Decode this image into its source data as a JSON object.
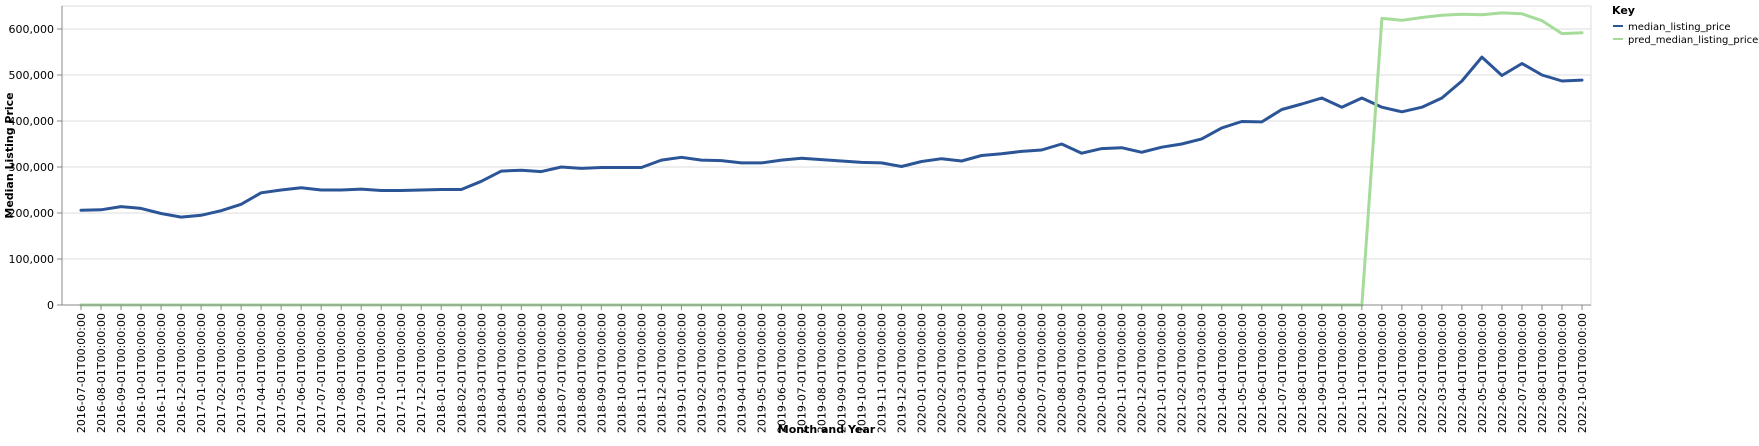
{
  "chart_data": {
    "type": "line",
    "xlabel": "Month and Year",
    "ylabel": "Median Listing Price",
    "ylim": [
      0,
      650000
    ],
    "y_ticks": [
      "0",
      "100,000",
      "200,000",
      "300,000",
      "400,000",
      "500,000",
      "600,000"
    ],
    "y_tick_values": [
      0,
      100000,
      200000,
      300000,
      400000,
      500000,
      600000
    ],
    "grid": true,
    "legend": {
      "title": "Key",
      "placement": "top-right"
    },
    "x": [
      "2016-07-01T00:00:00",
      "2016-08-01T00:00:00",
      "2016-09-01T00:00:00",
      "2016-10-01T00:00:00",
      "2016-11-01T00:00:00",
      "2016-12-01T00:00:00",
      "2017-01-01T00:00:00",
      "2017-02-01T00:00:00",
      "2017-03-01T00:00:00",
      "2017-04-01T00:00:00",
      "2017-05-01T00:00:00",
      "2017-06-01T00:00:00",
      "2017-07-01T00:00:00",
      "2017-08-01T00:00:00",
      "2017-09-01T00:00:00",
      "2017-10-01T00:00:00",
      "2017-11-01T00:00:00",
      "2017-12-01T00:00:00",
      "2018-01-01T00:00:00",
      "2018-02-01T00:00:00",
      "2018-03-01T00:00:00",
      "2018-04-01T00:00:00",
      "2018-05-01T00:00:00",
      "2018-06-01T00:00:00",
      "2018-07-01T00:00:00",
      "2018-08-01T00:00:00",
      "2018-09-01T00:00:00",
      "2018-10-01T00:00:00",
      "2018-11-01T00:00:00",
      "2018-12-01T00:00:00",
      "2019-01-01T00:00:00",
      "2019-02-01T00:00:00",
      "2019-03-01T00:00:00",
      "2019-04-01T00:00:00",
      "2019-05-01T00:00:00",
      "2019-06-01T00:00:00",
      "2019-07-01T00:00:00",
      "2019-08-01T00:00:00",
      "2019-09-01T00:00:00",
      "2019-10-01T00:00:00",
      "2019-11-01T00:00:00",
      "2019-12-01T00:00:00",
      "2020-01-01T00:00:00",
      "2020-02-01T00:00:00",
      "2020-03-01T00:00:00",
      "2020-04-01T00:00:00",
      "2020-05-01T00:00:00",
      "2020-06-01T00:00:00",
      "2020-07-01T00:00:00",
      "2020-08-01T00:00:00",
      "2020-09-01T00:00:00",
      "2020-10-01T00:00:00",
      "2020-11-01T00:00:00",
      "2020-12-01T00:00:00",
      "2021-01-01T00:00:00",
      "2021-02-01T00:00:00",
      "2021-03-01T00:00:00",
      "2021-04-01T00:00:00",
      "2021-05-01T00:00:00",
      "2021-06-01T00:00:00",
      "2021-07-01T00:00:00",
      "2021-08-01T00:00:00",
      "2021-09-01T00:00:00",
      "2021-10-01T00:00:00",
      "2021-11-01T00:00:00",
      "2021-12-01T00:00:00",
      "2022-01-01T00:00:00",
      "2022-02-01T00:00:00",
      "2022-03-01T00:00:00",
      "2022-04-01T00:00:00",
      "2022-05-01T00:00:00",
      "2022-06-01T00:00:00",
      "2022-07-01T00:00:00",
      "2022-08-01T00:00:00",
      "2022-09-01T00:00:00",
      "2022-10-01T00:00:00"
    ],
    "series": [
      {
        "name": "median_listing_price",
        "color": "#2b5597",
        "values": [
          206000,
          207000,
          214000,
          210000,
          199000,
          191000,
          195000,
          205000,
          219000,
          244000,
          250000,
          255000,
          250000,
          250000,
          252000,
          249000,
          249000,
          250000,
          251000,
          251000,
          269000,
          291000,
          293000,
          290000,
          300000,
          297000,
          299000,
          299000,
          299000,
          315000,
          321000,
          315000,
          314000,
          309000,
          309000,
          315000,
          319000,
          316000,
          313000,
          310000,
          309000,
          301000,
          312000,
          318000,
          313000,
          325000,
          329000,
          334000,
          337000,
          350000,
          330000,
          340000,
          342000,
          332000,
          343000,
          350000,
          361000,
          385000,
          399000,
          398000,
          425000,
          437000,
          450000,
          430000,
          450000,
          430000,
          420000,
          430000,
          450000,
          487000,
          539000,
          499000,
          525000,
          500000,
          487000,
          489000
        ]
      },
      {
        "name": "pred_median_listing_price",
        "color": "#a5dc9a",
        "values": [
          0,
          0,
          0,
          0,
          0,
          0,
          0,
          0,
          0,
          0,
          0,
          0,
          0,
          0,
          0,
          0,
          0,
          0,
          0,
          0,
          0,
          0,
          0,
          0,
          0,
          0,
          0,
          0,
          0,
          0,
          0,
          0,
          0,
          0,
          0,
          0,
          0,
          0,
          0,
          0,
          0,
          0,
          0,
          0,
          0,
          0,
          0,
          0,
          0,
          0,
          0,
          0,
          0,
          0,
          0,
          0,
          0,
          0,
          0,
          0,
          0,
          0,
          0,
          0,
          0,
          623000,
          619000,
          625000,
          630000,
          632000,
          631000,
          635000,
          633000,
          618000,
          590000,
          592000
        ]
      }
    ]
  }
}
